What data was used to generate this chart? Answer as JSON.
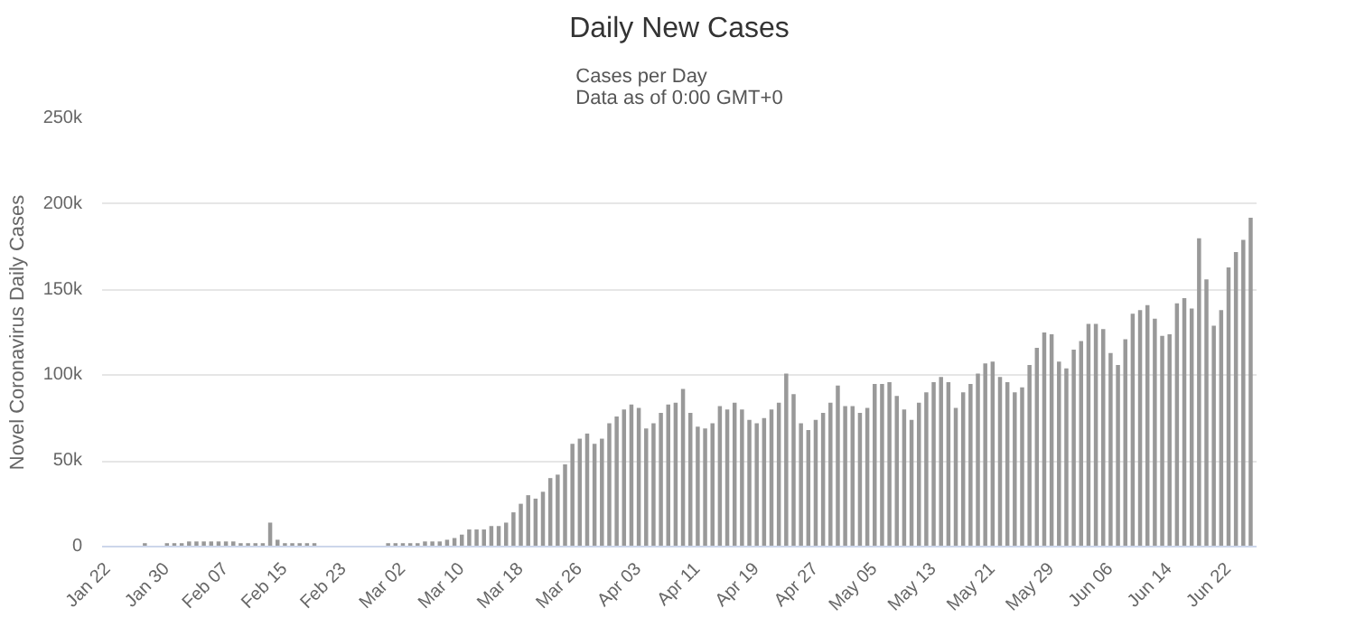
{
  "chart_data": {
    "type": "bar",
    "title": "Daily New Cases",
    "subtitle": "Cases per Day\nData as of 0:00 GMT+0",
    "ylabel": "Novel Coronavirus Daily Cases",
    "categories": [
      "Jan 22",
      null,
      null,
      null,
      null,
      null,
      null,
      null,
      "Jan 30",
      null,
      null,
      null,
      null,
      null,
      null,
      null,
      "Feb 07",
      null,
      null,
      null,
      null,
      null,
      null,
      null,
      "Feb 15",
      null,
      null,
      null,
      null,
      null,
      null,
      null,
      "Feb 23",
      null,
      null,
      null,
      null,
      null,
      null,
      null,
      "Mar 02",
      null,
      null,
      null,
      null,
      null,
      null,
      null,
      "Mar 10",
      null,
      null,
      null,
      null,
      null,
      null,
      null,
      "Mar 18",
      null,
      null,
      null,
      null,
      null,
      null,
      null,
      "Mar 26",
      null,
      null,
      null,
      null,
      null,
      null,
      null,
      "Apr 03",
      null,
      null,
      null,
      null,
      null,
      null,
      null,
      "Apr 11",
      null,
      null,
      null,
      null,
      null,
      null,
      null,
      "Apr 19",
      null,
      null,
      null,
      null,
      null,
      null,
      null,
      "Apr 27",
      null,
      null,
      null,
      null,
      null,
      null,
      null,
      "May 05",
      null,
      null,
      null,
      null,
      null,
      null,
      null,
      "May 13",
      null,
      null,
      null,
      null,
      null,
      null,
      null,
      "May 21",
      null,
      null,
      null,
      null,
      null,
      null,
      null,
      "May 29",
      null,
      null,
      null,
      null,
      null,
      null,
      null,
      "Jun 06",
      null,
      null,
      null,
      null,
      null,
      null,
      null,
      "Jun 14",
      null,
      null,
      null,
      null,
      null,
      null,
      null,
      "Jun 22",
      null,
      null,
      null
    ],
    "values": [
      0,
      0,
      0,
      0,
      0,
      2000,
      0,
      0,
      2000,
      2000,
      2000,
      3000,
      3000,
      3000,
      3000,
      3000,
      3000,
      3000,
      2000,
      2000,
      2000,
      2000,
      14000,
      4000,
      2000,
      2000,
      2000,
      2000,
      2000,
      0,
      0,
      0,
      0,
      0,
      0,
      0,
      0,
      0,
      2000,
      2000,
      2000,
      2000,
      2000,
      3000,
      3000,
      3000,
      4000,
      5000,
      7000,
      10000,
      10000,
      10000,
      12000,
      12000,
      14000,
      20000,
      25000,
      30000,
      28000,
      32000,
      40000,
      42000,
      48000,
      60000,
      63000,
      66000,
      60000,
      63000,
      72000,
      76000,
      80000,
      83000,
      81000,
      69000,
      72000,
      78000,
      83000,
      84000,
      92000,
      78000,
      70000,
      69000,
      72000,
      82000,
      80000,
      84000,
      80000,
      74000,
      72000,
      75000,
      80000,
      84000,
      101000,
      89000,
      72000,
      68000,
      74000,
      78000,
      84000,
      94000,
      82000,
      82000,
      78000,
      81000,
      95000,
      95000,
      96000,
      88000,
      80000,
      74000,
      84000,
      90000,
      96000,
      99000,
      96000,
      81000,
      90000,
      95000,
      101000,
      107000,
      108000,
      99000,
      96000,
      90000,
      93000,
      106000,
      116000,
      125000,
      124000,
      108000,
      104000,
      115000,
      120000,
      130000,
      130000,
      127000,
      113000,
      106000,
      121000,
      136000,
      138000,
      141000,
      133000,
      123000,
      124000,
      142000,
      145000,
      139000,
      180000,
      156000,
      129000,
      138000,
      163000,
      172000,
      179000,
      192000
    ],
    "color": "#999999",
    "ylim": [
      0,
      250000
    ],
    "yticks": [
      0,
      {
        "value": 50000,
        "label": "50k"
      },
      {
        "value": 100000,
        "label": "100k"
      },
      {
        "value": 150000,
        "label": "150k"
      },
      {
        "value": 200000,
        "label": "200k"
      },
      {
        "value": 250000,
        "label": "250k"
      }
    ],
    "grid": "y"
  }
}
